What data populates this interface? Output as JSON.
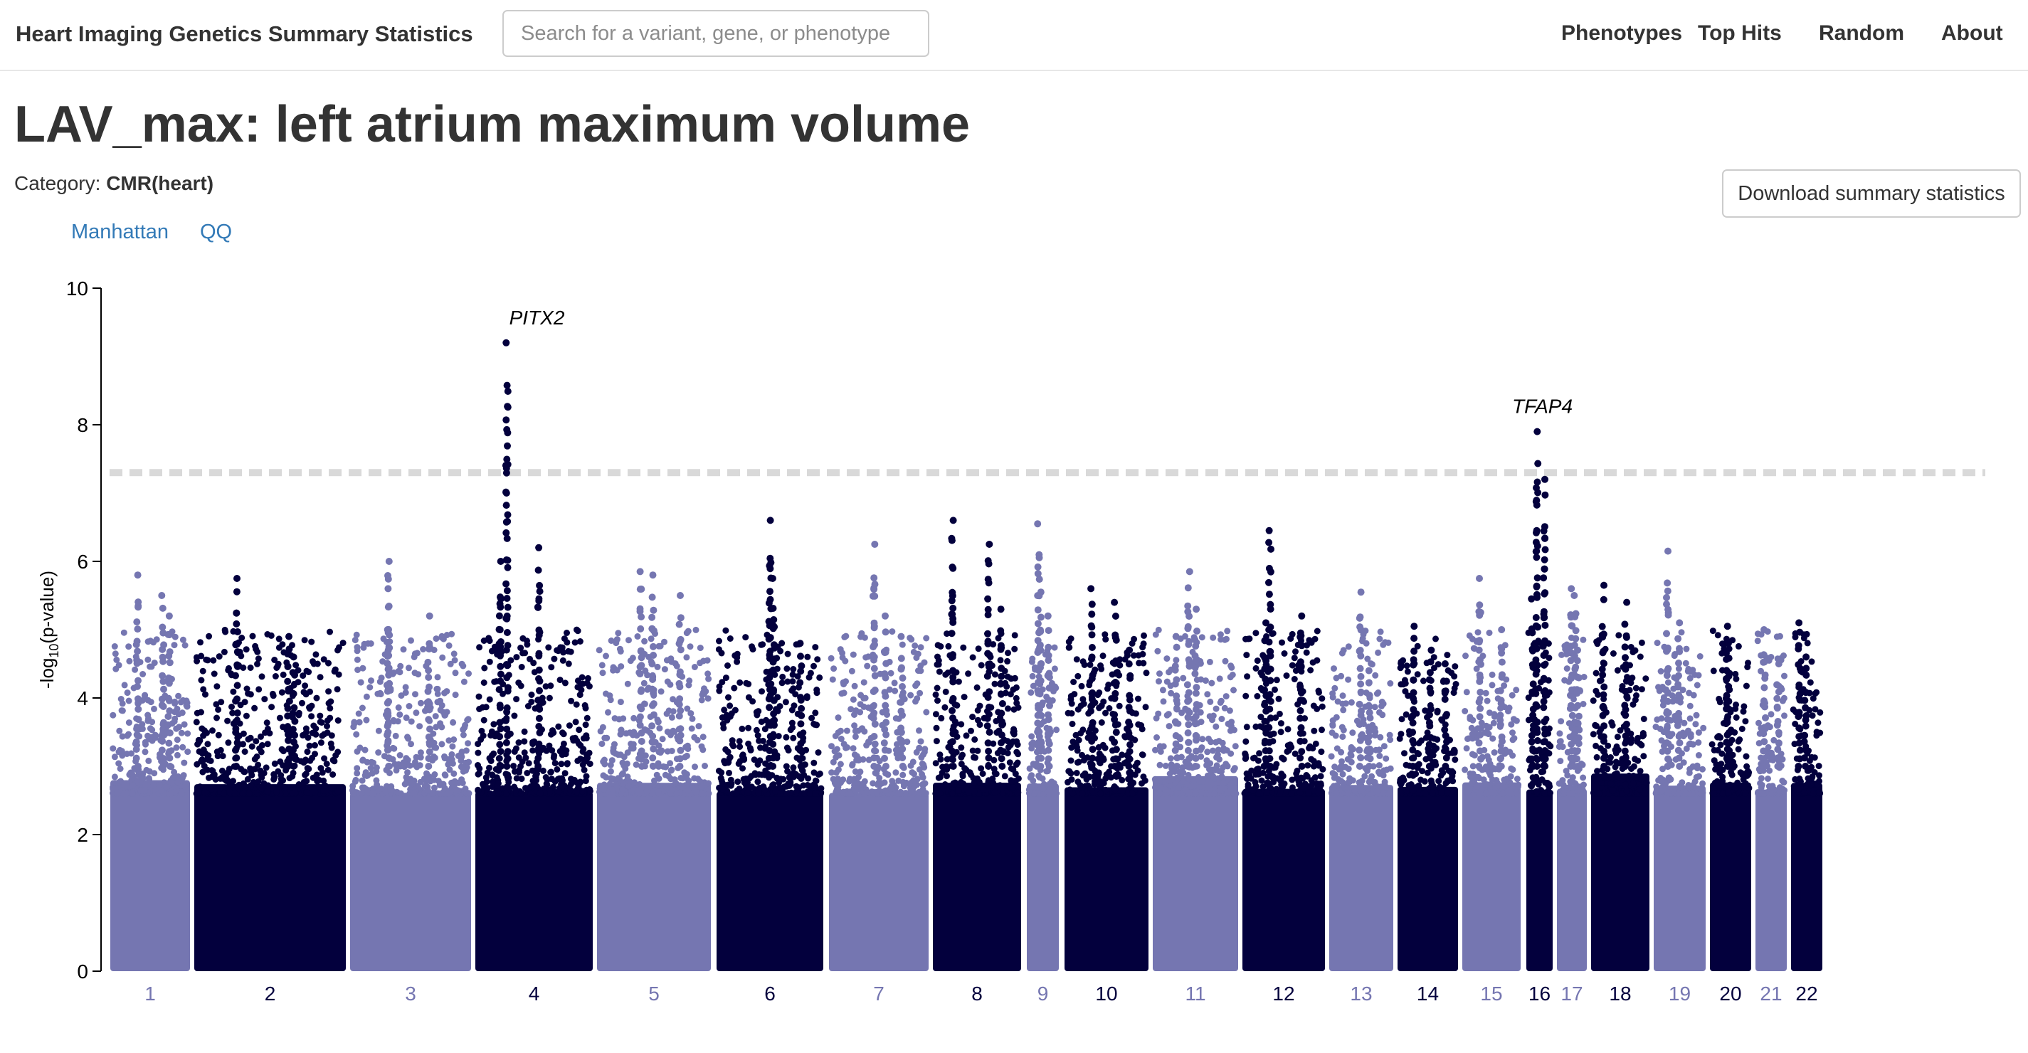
{
  "navbar": {
    "brand": "Heart Imaging Genetics Summary Statistics",
    "search_placeholder": "Search for a variant, gene, or phenotype",
    "links": [
      "Phenotypes",
      "Top Hits",
      "Random",
      "About"
    ]
  },
  "page": {
    "title": "LAV_max: left atrium maximum volume",
    "category_label": "Category:",
    "category_value": "CMR(heart)",
    "download_label": "Download summary statistics",
    "tabs": [
      "Manhattan",
      "QQ"
    ]
  },
  "colors": {
    "light": "#7576b1",
    "dark": "#03003d",
    "threshold": "#d9d9d9",
    "link": "#337ab7"
  },
  "chart_data": {
    "type": "scatter",
    "title": "",
    "xlabel": "",
    "ylabel": "-log10(p-value)",
    "ylim": [
      0,
      10
    ],
    "yticks": [
      0,
      2,
      4,
      6,
      8,
      10
    ],
    "significance_threshold": 7.3,
    "chromosomes": [
      {
        "name": "1",
        "color": "light",
        "max": 5.8,
        "peaks": [
          5.8,
          5.5,
          5.2
        ]
      },
      {
        "name": "2",
        "color": "dark",
        "max": 5.75,
        "peaks": [
          5.75,
          4.9,
          4.6
        ]
      },
      {
        "name": "3",
        "color": "light",
        "max": 6.0,
        "peaks": [
          6.0,
          5.2,
          5.0
        ]
      },
      {
        "name": "4",
        "color": "dark",
        "max": 9.2,
        "peaks": [
          9.2,
          6.2,
          6.0
        ]
      },
      {
        "name": "5",
        "color": "light",
        "max": 5.85,
        "peaks": [
          5.85,
          5.8,
          5.5
        ]
      },
      {
        "name": "6",
        "color": "dark",
        "max": 6.6,
        "peaks": [
          6.6,
          5.75,
          4.8
        ]
      },
      {
        "name": "7",
        "color": "light",
        "max": 6.25,
        "peaks": [
          6.25,
          5.2,
          4.9
        ]
      },
      {
        "name": "8",
        "color": "dark",
        "max": 6.6,
        "peaks": [
          6.6,
          6.25,
          5.3
        ]
      },
      {
        "name": "9",
        "color": "light",
        "max": 6.55,
        "peaks": [
          6.55,
          5.55,
          5.2
        ]
      },
      {
        "name": "10",
        "color": "dark",
        "max": 5.6,
        "peaks": [
          5.6,
          5.4,
          4.7
        ]
      },
      {
        "name": "11",
        "color": "light",
        "max": 5.85,
        "peaks": [
          5.85,
          5.3,
          4.9
        ]
      },
      {
        "name": "12",
        "color": "dark",
        "max": 6.45,
        "peaks": [
          6.45,
          5.2,
          5.1
        ]
      },
      {
        "name": "13",
        "color": "light",
        "max": 5.55,
        "peaks": [
          5.55,
          4.4
        ]
      },
      {
        "name": "14",
        "color": "dark",
        "max": 5.05,
        "peaks": [
          5.05,
          4.7,
          4.5
        ]
      },
      {
        "name": "15",
        "color": "light",
        "max": 5.75,
        "peaks": [
          5.75,
          5.0
        ]
      },
      {
        "name": "16",
        "color": "dark",
        "max": 7.9,
        "peaks": [
          7.9,
          7.2,
          5.45
        ]
      },
      {
        "name": "17",
        "color": "light",
        "max": 5.6,
        "peaks": [
          5.6,
          5.5,
          4.7
        ]
      },
      {
        "name": "18",
        "color": "dark",
        "max": 5.65,
        "peaks": [
          5.65,
          5.4
        ]
      },
      {
        "name": "19",
        "color": "light",
        "max": 6.15,
        "peaks": [
          6.15,
          5.1
        ]
      },
      {
        "name": "20",
        "color": "dark",
        "max": 5.05,
        "peaks": [
          5.05,
          4.8
        ]
      },
      {
        "name": "21",
        "color": "light",
        "max": 5.0,
        "peaks": [
          5.0,
          4.5
        ]
      },
      {
        "name": "22",
        "color": "dark",
        "max": 5.1,
        "peaks": [
          5.1,
          4.6
        ]
      }
    ],
    "annotations": [
      {
        "gene": "PITX2",
        "chrom": "4",
        "value": 9.2
      },
      {
        "gene": "TFAP4",
        "chrom": "16",
        "value": 7.9
      }
    ]
  }
}
